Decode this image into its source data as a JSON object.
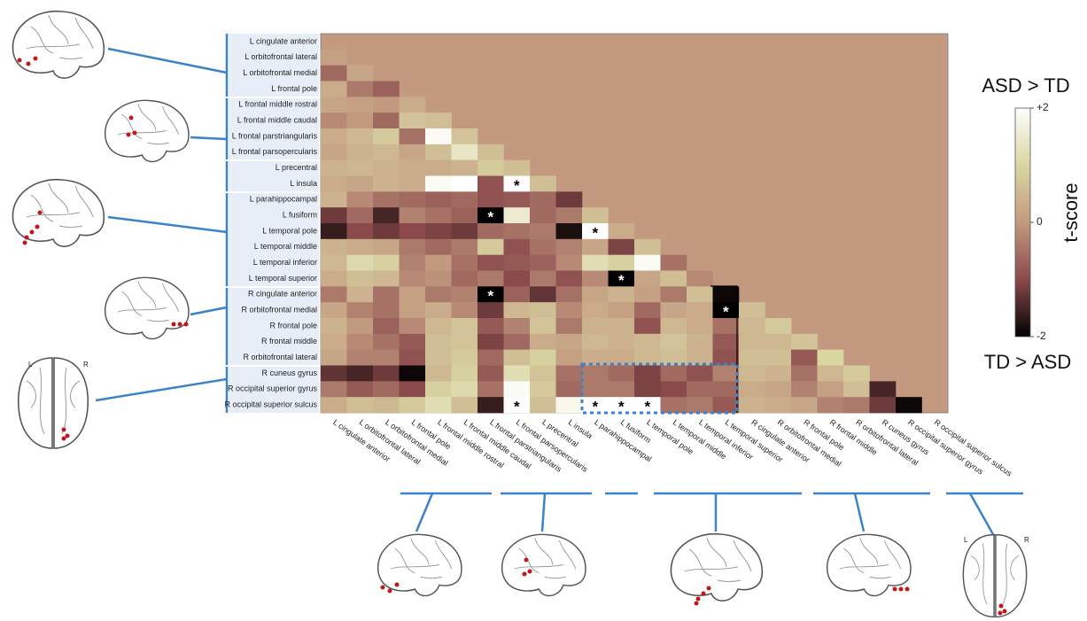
{
  "chart_data": {
    "type": "heatmap",
    "labels": [
      "L cingulate anterior",
      "L orbitofrontal lateral",
      "L orbitofrontal medial",
      "L frontal pole",
      "L frontal middle rostral",
      "L frontal middle caudal",
      "L frontal parstriangularis",
      "L frontal parsopercularis",
      "L precentral",
      "L insula",
      "L parahippocampal",
      "L fusiform",
      "L temporal pole",
      "L temporal middle",
      "L temporal inferior",
      "L temporal superior",
      "R cingulate anterior",
      "R orbitofrontal medial",
      "R frontal pole",
      "R frontal middle",
      "R orbitofrontal lateral",
      "R cuneus gyrus",
      "R occipital superior gyrus",
      "R occipital superior sulcus"
    ],
    "values": [
      [],
      [
        0.1
      ],
      [
        -0.6,
        0.2
      ],
      [
        0.3,
        -0.4,
        -0.7
      ],
      [
        0.2,
        0.1,
        0.0,
        0.3
      ],
      [
        -0.2,
        0.0,
        -0.6,
        0.7,
        0.6
      ],
      [
        0.3,
        0.5,
        0.8,
        -0.5,
        1.9,
        0.7
      ],
      [
        0.2,
        0.4,
        0.5,
        0.2,
        0.6,
        1.4,
        0.6
      ],
      [
        0.4,
        0.5,
        0.4,
        0.3,
        0.3,
        0.4,
        0.8,
        0.6
      ],
      [
        0.3,
        0.2,
        0.4,
        0.3,
        1.9,
        2.0,
        -0.9,
        2.0,
        0.6
      ],
      [
        0.4,
        -0.2,
        -0.5,
        -0.6,
        -0.7,
        -0.6,
        -0.9,
        -0.8,
        -0.6,
        -1.2
      ],
      [
        -1.2,
        -0.6,
        -1.5,
        -0.3,
        -0.5,
        -0.7,
        -2.0,
        1.5,
        -0.6,
        -0.4,
        0.6
      ],
      [
        -1.6,
        -1.0,
        -1.2,
        -1.0,
        -1.1,
        -1.2,
        -0.6,
        -0.5,
        -0.4,
        -1.8,
        2.0,
        0.3
      ],
      [
        0.4,
        0.3,
        0.2,
        -0.4,
        -0.6,
        -0.4,
        0.8,
        -0.9,
        -0.5,
        -0.3,
        0.2,
        -1.1,
        0.6
      ],
      [
        0.5,
        1.1,
        0.9,
        -0.3,
        0.0,
        -0.5,
        -0.9,
        -0.8,
        -0.7,
        -0.2,
        1.2,
        0.9,
        1.9,
        -0.5
      ],
      [
        0.3,
        0.6,
        0.5,
        -0.2,
        -0.1,
        -0.6,
        -0.4,
        -1.0,
        -0.4,
        -0.9,
        -0.2,
        -2.0,
        0.2,
        0.6,
        -0.2
      ],
      [
        -0.4,
        0.4,
        -0.5,
        0.1,
        -0.4,
        -0.3,
        -2.0,
        -0.7,
        -1.3,
        -0.5,
        0.2,
        0.4,
        0.1,
        -0.4,
        0.6,
        -1.9
      ],
      [
        0.2,
        -0.3,
        -0.5,
        0.1,
        0.3,
        -0.2,
        -1.2,
        0.5,
        0.6,
        -0.2,
        0.3,
        0.1,
        -0.6,
        0.2,
        0.3,
        -2.0,
        0.6
      ],
      [
        0.4,
        0.0,
        -0.7,
        -0.2,
        0.5,
        0.7,
        -0.8,
        -0.3,
        0.7,
        -0.4,
        0.4,
        0.4,
        -0.9,
        0.5,
        0.3,
        -0.5,
        0.5,
        0.8
      ],
      [
        0.3,
        -0.2,
        -0.5,
        -0.8,
        0.6,
        0.7,
        -1.1,
        -0.6,
        0.3,
        0.2,
        0.5,
        0.4,
        0.5,
        0.7,
        0.4,
        -0.8,
        0.5,
        0.5,
        0.7
      ],
      [
        0.2,
        -0.3,
        -0.3,
        -0.9,
        0.6,
        0.8,
        -0.6,
        0.6,
        0.9,
        0.1,
        0.3,
        0.3,
        0.5,
        0.6,
        0.4,
        -0.9,
        0.6,
        0.6,
        -0.8,
        1.0
      ],
      [
        -1.3,
        -1.5,
        -1.2,
        -1.9,
        0.5,
        0.9,
        -0.8,
        1.2,
        0.7,
        -0.5,
        -0.4,
        -0.6,
        -1.1,
        -0.6,
        -0.9,
        -0.3,
        0.5,
        0.4,
        -0.5,
        0.5,
        0.8
      ],
      [
        -0.4,
        -0.8,
        -0.6,
        -1.0,
        0.9,
        1.1,
        -0.5,
        1.9,
        0.8,
        -0.6,
        -0.4,
        -0.4,
        -1.1,
        -1.0,
        -0.6,
        -0.6,
        0.3,
        0.2,
        -0.3,
        0.1,
        0.6,
        -1.5
      ],
      [
        0.3,
        0.6,
        0.5,
        0.8,
        1.2,
        0.6,
        -1.6,
        2.0,
        0.6,
        1.8,
        2.0,
        2.0,
        2.0,
        -0.5,
        -0.4,
        -0.8,
        0.4,
        0.3,
        0.2,
        -0.3,
        -0.4,
        -1.2,
        -1.9
      ]
    ],
    "significance_label": "*",
    "significant_cells": [
      [
        9,
        7
      ],
      [
        11,
        6
      ],
      [
        12,
        10
      ],
      [
        15,
        11
      ],
      [
        16,
        6
      ],
      [
        17,
        15
      ],
      [
        23,
        7
      ],
      [
        23,
        10
      ],
      [
        23,
        11
      ],
      [
        23,
        12
      ]
    ],
    "colormap": [
      "#000000",
      "#8a4a4c",
      "#c39a80",
      "#d9d6a2",
      "#ffffff"
    ],
    "clim": [
      -2,
      2
    ],
    "cticks": [
      {
        "value": 2,
        "label": "+2"
      },
      0,
      -2
    ],
    "colorbar_label": "t-score",
    "colorbar_top_label": "ASD > TD",
    "colorbar_bottom_label": "TD > ASD",
    "hemisphere_labels": [
      "L",
      "R"
    ]
  }
}
